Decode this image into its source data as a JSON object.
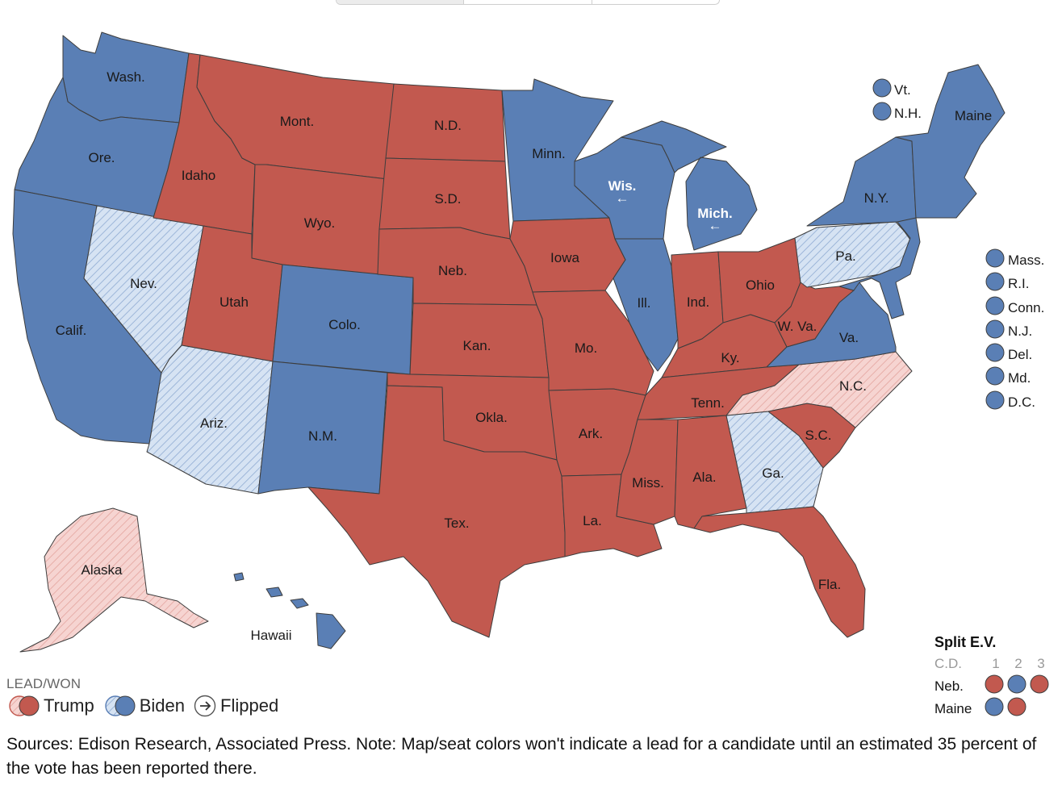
{
  "colors": {
    "trump": "#c2594f",
    "biden": "#5a7fb5",
    "trump_lead": "#f6d4d1",
    "biden_lead": "#d6e3f3",
    "border": "#3d3d3d"
  },
  "states": {
    "wash": {
      "label": "Wash.",
      "status": "biden"
    },
    "ore": {
      "label": "Ore.",
      "status": "biden"
    },
    "calif": {
      "label": "Calif.",
      "status": "biden"
    },
    "nev": {
      "label": "Nev.",
      "status": "biden_lead"
    },
    "idaho": {
      "label": "Idaho",
      "status": "trump"
    },
    "mont": {
      "label": "Mont.",
      "status": "trump"
    },
    "wyo": {
      "label": "Wyo.",
      "status": "trump"
    },
    "utah": {
      "label": "Utah",
      "status": "trump"
    },
    "ariz": {
      "label": "Ariz.",
      "status": "biden_lead"
    },
    "colo": {
      "label": "Colo.",
      "status": "biden"
    },
    "nm": {
      "label": "N.M.",
      "status": "biden"
    },
    "nd": {
      "label": "N.D.",
      "status": "trump"
    },
    "sd": {
      "label": "S.D.",
      "status": "trump"
    },
    "neb": {
      "label": "Neb.",
      "status": "trump"
    },
    "kan": {
      "label": "Kan.",
      "status": "trump"
    },
    "okla": {
      "label": "Okla.",
      "status": "trump"
    },
    "tex": {
      "label": "Tex.",
      "status": "trump"
    },
    "minn": {
      "label": "Minn.",
      "status": "biden"
    },
    "iowa": {
      "label": "Iowa",
      "status": "trump"
    },
    "mo": {
      "label": "Mo.",
      "status": "trump"
    },
    "ark": {
      "label": "Ark.",
      "status": "trump"
    },
    "la": {
      "label": "La.",
      "status": "trump"
    },
    "wis": {
      "label": "Wis.",
      "status": "biden",
      "flipped": true
    },
    "ill": {
      "label": "Ill.",
      "status": "biden"
    },
    "mich": {
      "label": "Mich.",
      "status": "biden",
      "flipped": true
    },
    "ind": {
      "label": "Ind.",
      "status": "trump"
    },
    "ohio": {
      "label": "Ohio",
      "status": "trump"
    },
    "ky": {
      "label": "Ky.",
      "status": "trump"
    },
    "tenn": {
      "label": "Tenn.",
      "status": "trump"
    },
    "miss": {
      "label": "Miss.",
      "status": "trump"
    },
    "ala": {
      "label": "Ala.",
      "status": "trump"
    },
    "ga": {
      "label": "Ga.",
      "status": "biden_lead"
    },
    "fla": {
      "label": "Fla.",
      "status": "trump"
    },
    "sc": {
      "label": "S.C.",
      "status": "trump"
    },
    "nc": {
      "label": "N.C.",
      "status": "trump_lead"
    },
    "va": {
      "label": "Va.",
      "status": "biden"
    },
    "wva": {
      "label": "W. Va.",
      "status": "trump"
    },
    "pa": {
      "label": "Pa.",
      "status": "biden_lead"
    },
    "ny": {
      "label": "N.Y.",
      "status": "biden"
    },
    "maine": {
      "label": "Maine",
      "status": "biden"
    },
    "alaska": {
      "label": "Alaska",
      "status": "trump_lead"
    },
    "hawaii": {
      "label": "Hawaii",
      "status": "biden"
    }
  },
  "small_states_ne": [
    {
      "label": "Vt.",
      "status": "biden"
    },
    {
      "label": "N.H.",
      "status": "biden"
    }
  ],
  "small_states_east": [
    {
      "label": "Mass.",
      "status": "biden"
    },
    {
      "label": "R.I.",
      "status": "biden"
    },
    {
      "label": "Conn.",
      "status": "biden"
    },
    {
      "label": "N.J.",
      "status": "biden"
    },
    {
      "label": "Del.",
      "status": "biden"
    },
    {
      "label": "Md.",
      "status": "biden"
    },
    {
      "label": "D.C.",
      "status": "biden"
    }
  ],
  "legend": {
    "title": "LEAD/WON",
    "trump": "Trump",
    "biden": "Biden",
    "flipped": "Flipped"
  },
  "split_ev": {
    "title": "Split E.V.",
    "header_label": "C.D.",
    "districts": [
      "1",
      "2",
      "3"
    ],
    "rows": [
      {
        "label": "Neb.",
        "values": [
          "trump",
          "biden",
          "trump"
        ]
      },
      {
        "label": "Maine",
        "values": [
          "biden",
          "trump"
        ]
      }
    ]
  },
  "sources": "Sources: Edison Research, Associated Press. Note: Map/seat colors won't indicate a lead for a candidate until an estimated 35 percent of the vote has been reported there."
}
